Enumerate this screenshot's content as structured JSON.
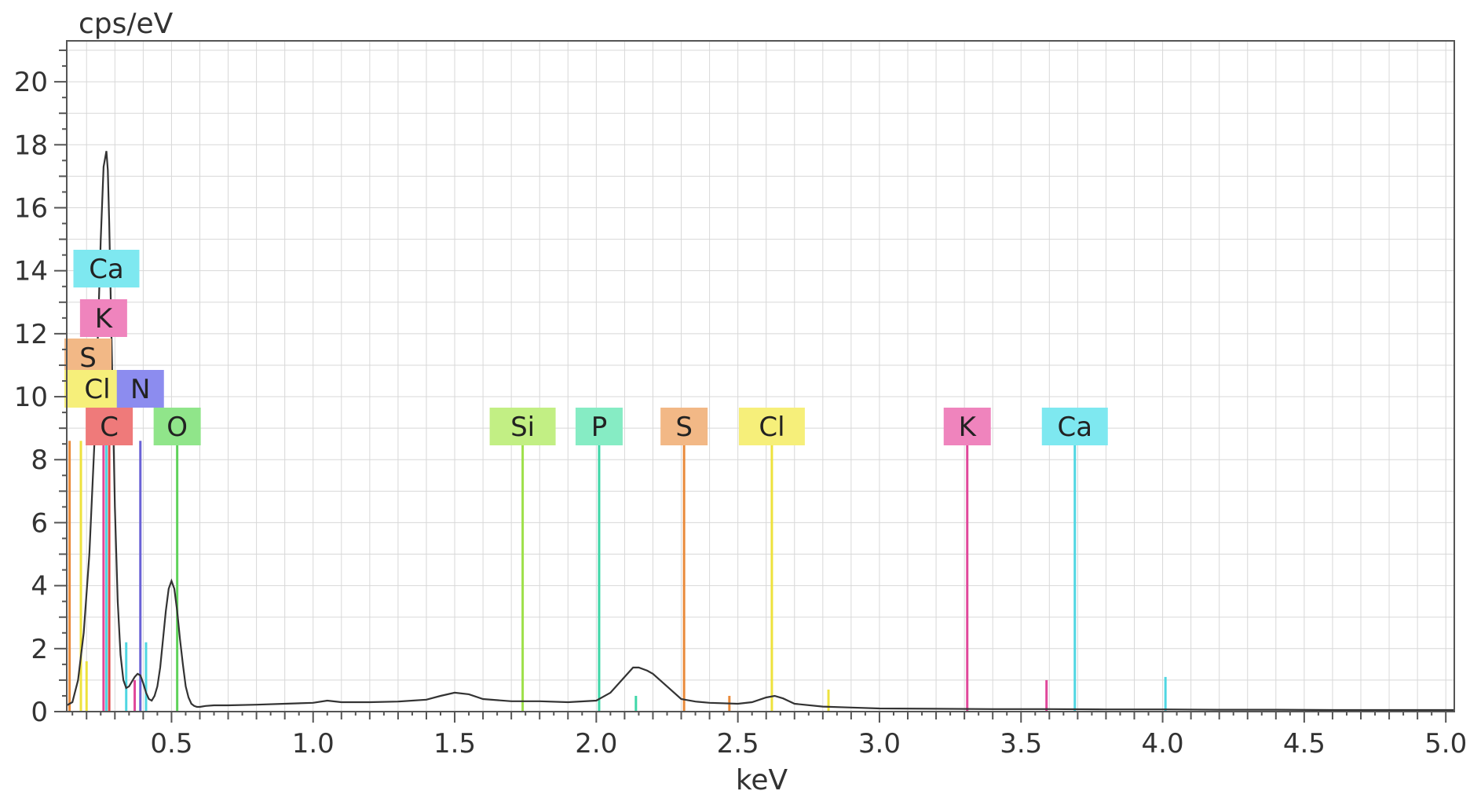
{
  "chart_data": {
    "type": "line",
    "ylabel": "cps/eV",
    "xlabel": "keV",
    "xlim": [
      0.13,
      5.03
    ],
    "ylim": [
      0,
      21.3
    ],
    "grid": true,
    "x_ticks": [
      0.5,
      1.0,
      1.5,
      2.0,
      2.5,
      3.0,
      3.5,
      4.0,
      4.5,
      5.0
    ],
    "x_tick_labels": [
      "0.5",
      "1.0",
      "1.5",
      "2.0",
      "2.5",
      "3.0",
      "3.5",
      "4.0",
      "4.5",
      "5.0"
    ],
    "y_ticks": [
      0,
      2,
      4,
      6,
      8,
      10,
      12,
      14,
      16,
      18,
      20
    ],
    "y_tick_labels": [
      "0",
      "2",
      "4",
      "6",
      "8",
      "10",
      "12",
      "14",
      "16",
      "18",
      "20"
    ],
    "series": [
      {
        "values_x": [
          0.13,
          0.15,
          0.17,
          0.19,
          0.21,
          0.23,
          0.24,
          0.25,
          0.26,
          0.27,
          0.275,
          0.28,
          0.29,
          0.3,
          0.31,
          0.32,
          0.33,
          0.34,
          0.35,
          0.36,
          0.37,
          0.38,
          0.39,
          0.4,
          0.41,
          0.42,
          0.43,
          0.44,
          0.45,
          0.46,
          0.47,
          0.48,
          0.49,
          0.5,
          0.51,
          0.52,
          0.53,
          0.54,
          0.55,
          0.56,
          0.57,
          0.58,
          0.59,
          0.6,
          0.62,
          0.65,
          0.7,
          0.8,
          0.9,
          1.0,
          1.05,
          1.1,
          1.2,
          1.3,
          1.4,
          1.45,
          1.5,
          1.55,
          1.6,
          1.7,
          1.8,
          1.9,
          2.0,
          2.05,
          2.1,
          2.13,
          2.15,
          2.18,
          2.2,
          2.25,
          2.3,
          2.35,
          2.4,
          2.5,
          2.55,
          2.6,
          2.63,
          2.66,
          2.7,
          2.8,
          2.9,
          3.0,
          3.2,
          3.4,
          3.6,
          3.8,
          4.0,
          4.2,
          4.4,
          4.6,
          4.8,
          5.03
        ],
        "values_y": [
          0.2,
          0.3,
          1.0,
          2.5,
          5.0,
          9.0,
          12.0,
          15.0,
          17.3,
          17.8,
          17.2,
          15.5,
          11.0,
          6.5,
          3.5,
          1.8,
          1.0,
          0.75,
          0.8,
          0.95,
          1.1,
          1.2,
          1.15,
          0.9,
          0.6,
          0.4,
          0.35,
          0.5,
          0.8,
          1.4,
          2.3,
          3.2,
          3.9,
          4.15,
          3.9,
          3.2,
          2.3,
          1.5,
          0.8,
          0.45,
          0.25,
          0.18,
          0.15,
          0.15,
          0.18,
          0.2,
          0.2,
          0.22,
          0.25,
          0.28,
          0.35,
          0.3,
          0.3,
          0.32,
          0.38,
          0.5,
          0.6,
          0.55,
          0.4,
          0.33,
          0.33,
          0.3,
          0.35,
          0.6,
          1.1,
          1.4,
          1.4,
          1.3,
          1.2,
          0.8,
          0.4,
          0.32,
          0.28,
          0.25,
          0.3,
          0.45,
          0.5,
          0.42,
          0.25,
          0.16,
          0.13,
          0.1,
          0.09,
          0.08,
          0.08,
          0.07,
          0.07,
          0.06,
          0.06,
          0.05,
          0.05,
          0.05
        ]
      }
    ],
    "markers": [
      {
        "label": "Ca",
        "x": 0.27,
        "color": "#7ee8f0",
        "line_color": "#4fd6e2",
        "row": 0
      },
      {
        "label": "K",
        "x": 0.26,
        "color": "#ef84bd",
        "line_color": "#e0479a",
        "row": 1
      },
      {
        "label": "S",
        "x": 0.14,
        "color": "#f2b886",
        "line_color": "#e98a3a",
        "row": 2
      },
      {
        "label": "Cl",
        "x": 0.18,
        "color": "#f6ef7a",
        "line_color": "#eee23d",
        "row": 3
      },
      {
        "label": "N",
        "x": 0.39,
        "color": "#8c8cef",
        "line_color": "#6a62d6",
        "row": 3
      },
      {
        "label": "C",
        "x": 0.28,
        "color": "#ef7a7a",
        "line_color": "#e04a4a",
        "row": 4
      },
      {
        "label": "O",
        "x": 0.52,
        "color": "#90e58a",
        "line_color": "#5fd25a",
        "row": 4
      },
      {
        "label": "Si",
        "x": 1.74,
        "color": "#c2ef84",
        "line_color": "#9ee04a",
        "row": 4
      },
      {
        "label": "P",
        "x": 2.01,
        "color": "#86ecc4",
        "line_color": "#3fd7a8",
        "row": 4
      },
      {
        "label": "S",
        "x": 2.31,
        "color": "#f2b886",
        "line_color": "#e98a3a",
        "row": 4
      },
      {
        "label": "Cl",
        "x": 2.62,
        "color": "#f6ef7a",
        "line_color": "#eee23d",
        "row": 4
      },
      {
        "label": "K",
        "x": 3.31,
        "color": "#ef84bd",
        "line_color": "#e0479a",
        "row": 4
      },
      {
        "label": "Ca",
        "x": 3.69,
        "color": "#7ee8f0",
        "line_color": "#4fd6e2",
        "row": 4
      }
    ],
    "minor_lines": [
      {
        "x": 0.2,
        "y": 1.6,
        "color": "#eee23d"
      },
      {
        "x": 0.34,
        "y": 2.2,
        "color": "#4fd6e2"
      },
      {
        "x": 0.41,
        "y": 2.2,
        "color": "#4fd6e2"
      },
      {
        "x": 0.37,
        "y": 1.0,
        "color": "#e0479a"
      },
      {
        "x": 2.14,
        "y": 0.5,
        "color": "#3fd7a8"
      },
      {
        "x": 2.47,
        "y": 0.5,
        "color": "#e98a3a"
      },
      {
        "x": 2.82,
        "y": 0.7,
        "color": "#eee23d"
      },
      {
        "x": 3.59,
        "y": 1.0,
        "color": "#e0479a"
      },
      {
        "x": 4.01,
        "y": 1.1,
        "color": "#4fd6e2"
      }
    ],
    "colors": {
      "spectrum": "#333333",
      "grid": "#d8d8d8",
      "axis": "#555555"
    }
  }
}
